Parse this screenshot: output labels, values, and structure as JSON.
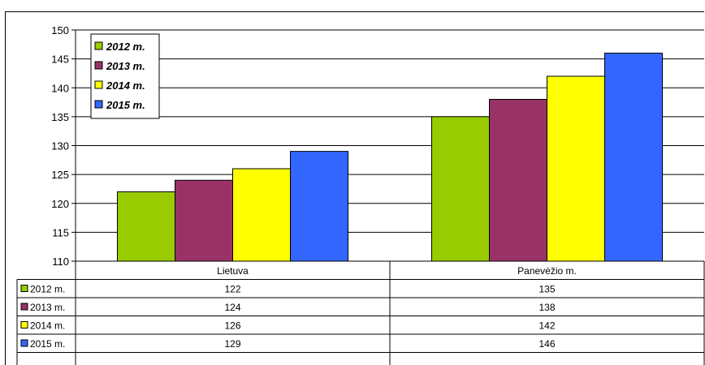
{
  "chart_data": {
    "type": "bar",
    "categories": [
      "Lietuva",
      "Panevėžio m."
    ],
    "series": [
      {
        "name": "2012 m.",
        "values": [
          122,
          135
        ],
        "color": "#99cc00"
      },
      {
        "name": "2013 m.",
        "values": [
          124,
          138
        ],
        "color": "#993366"
      },
      {
        "name": "2014 m.",
        "values": [
          126,
          142
        ],
        "color": "#ffff00"
      },
      {
        "name": "2015 m.",
        "values": [
          129,
          146
        ],
        "color": "#3366ff"
      }
    ],
    "ylim": [
      110,
      150
    ],
    "yticks": [
      110,
      115,
      120,
      125,
      130,
      135,
      140,
      145,
      150
    ],
    "grid": true,
    "legend_position": "top-left",
    "data_table": true
  }
}
